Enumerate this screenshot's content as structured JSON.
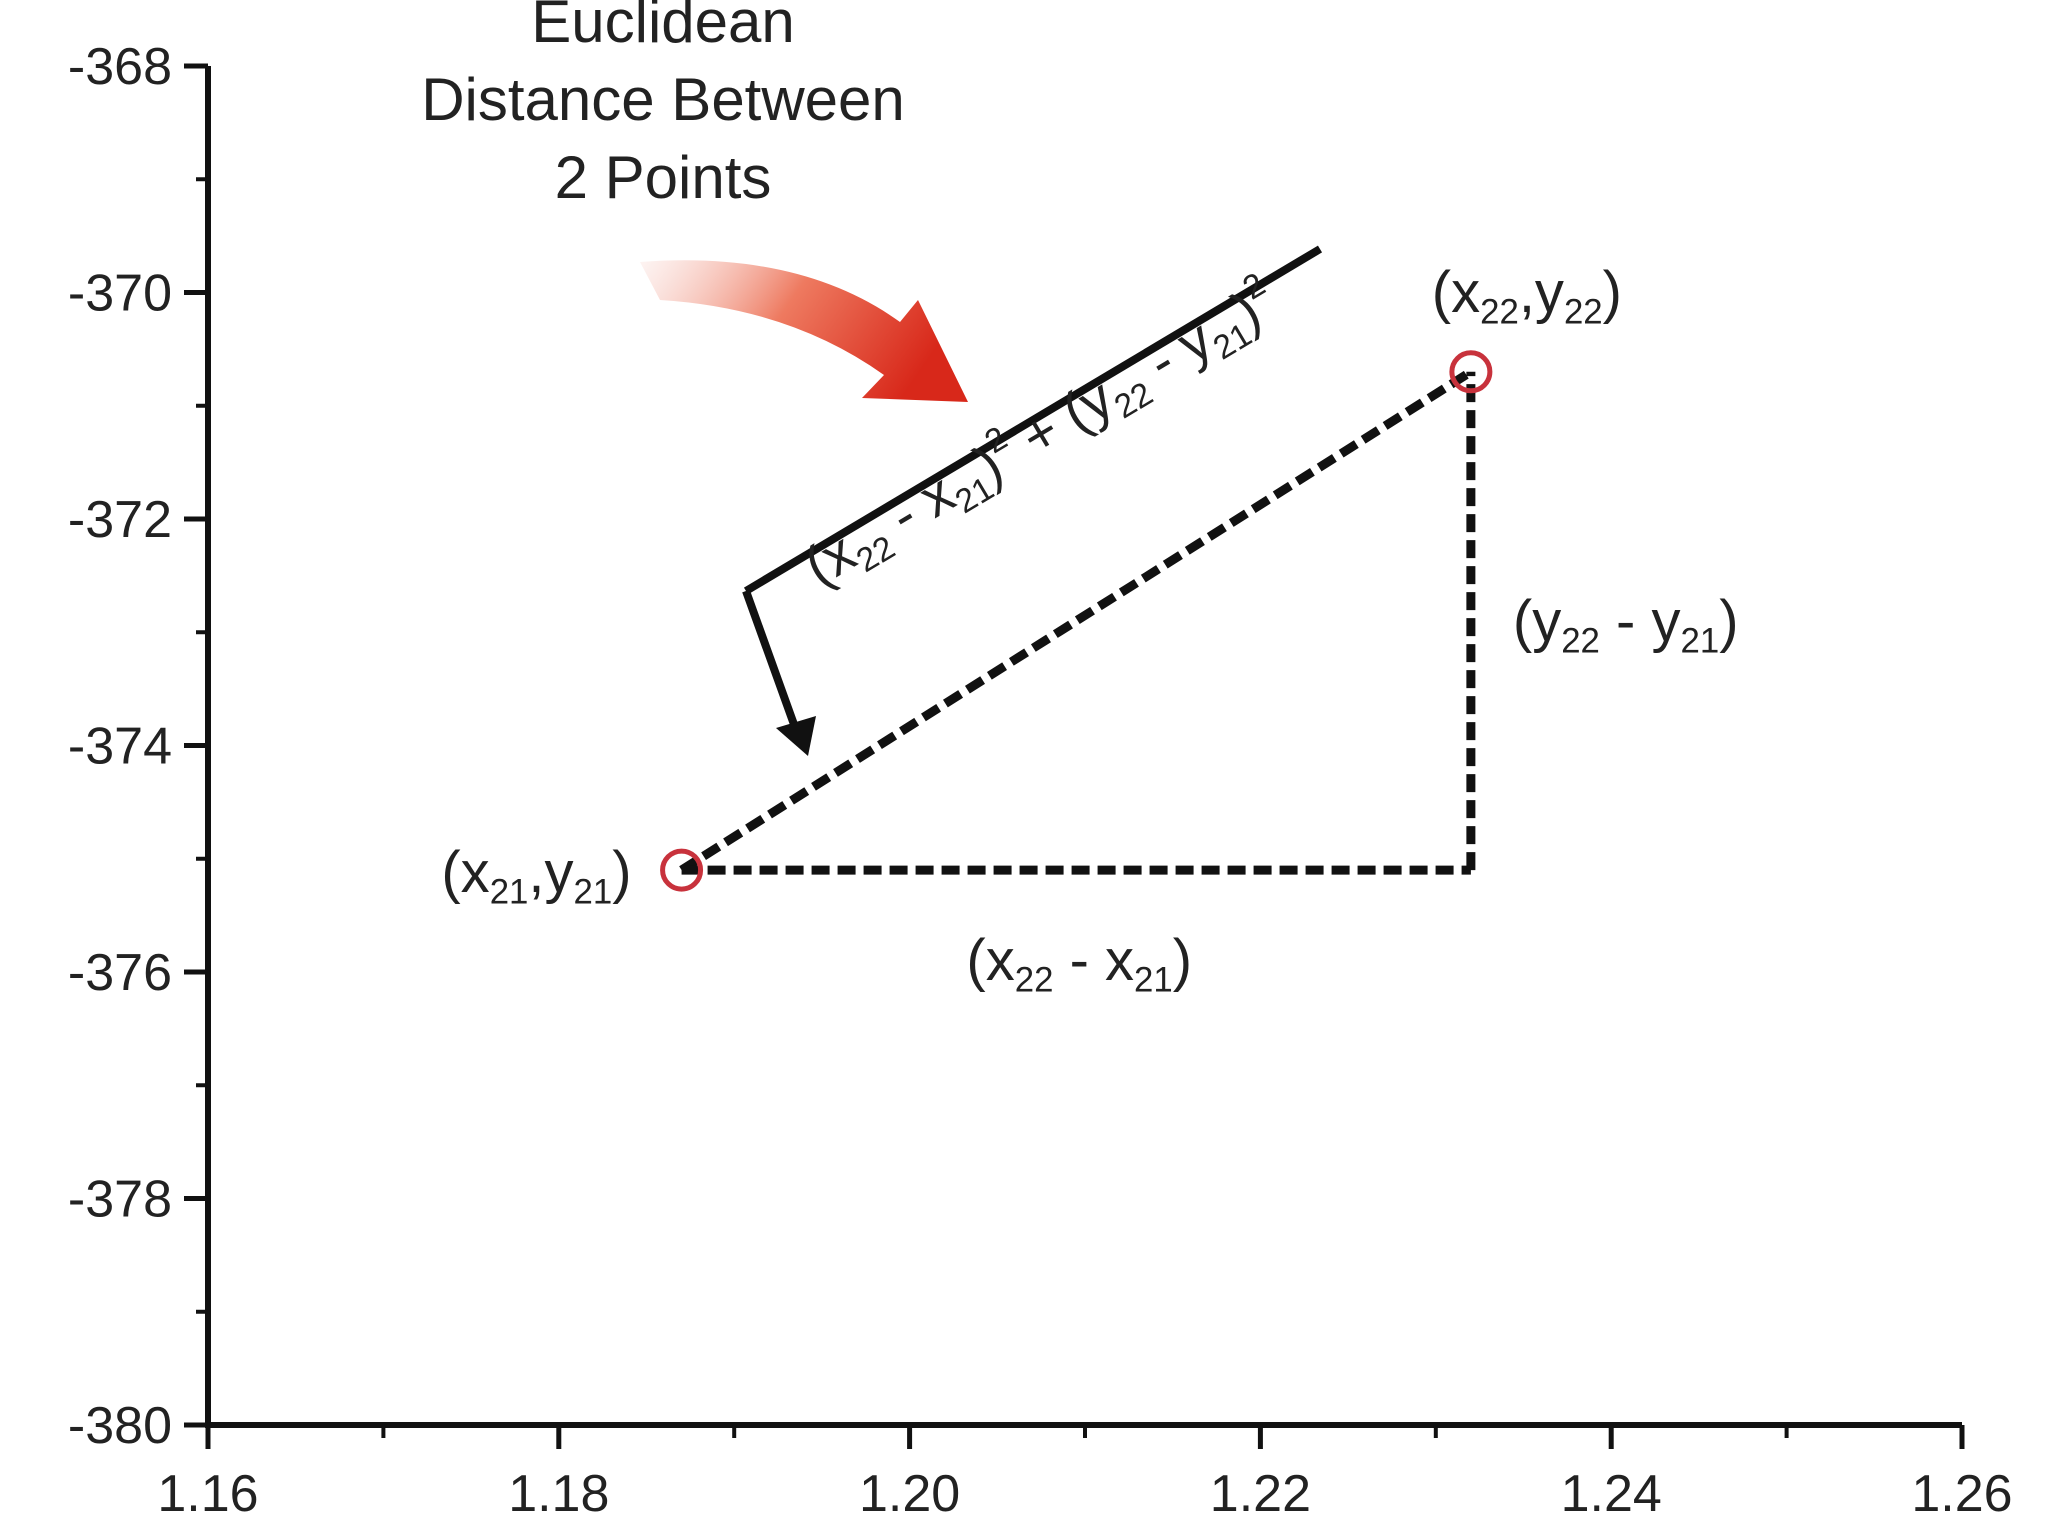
{
  "chart_data": {
    "type": "scatter",
    "title": [
      "Euclidean",
      "Distance Between",
      "2 Points"
    ],
    "x": [
      1.187,
      1.232
    ],
    "values": [
      -375.1,
      -370.7
    ],
    "color": "#c8323c",
    "point_labels": [
      [
        "(x",
        "21",
        ",y",
        "21",
        ")"
      ],
      [
        "(x",
        "22",
        ",y",
        "22",
        ")"
      ]
    ],
    "annotations": {
      "dx": [
        "(x",
        "22",
        " - x",
        "21",
        ")"
      ],
      "dy": [
        "(y",
        "22",
        " - y",
        "21",
        ")"
      ],
      "formula": [
        "(x",
        "22",
        " - x",
        "21",
        ")",
        "2",
        " + (y",
        "22",
        " - y",
        "21",
        ")",
        "2"
      ]
    },
    "xlim": [
      1.16,
      1.26
    ],
    "xticks": [
      1.16,
      1.18,
      {
        "value": 1.2,
        "label": "1.20"
      },
      1.22,
      1.24,
      1.26
    ],
    "xminorticks": [
      1.17,
      1.19,
      1.21,
      1.23,
      1.25
    ],
    "ylim": [
      -380,
      -368
    ],
    "yticks": [
      -368,
      -370,
      -372,
      -374,
      -376,
      -378,
      -380
    ],
    "yminorticks": [
      -369,
      -371,
      -373,
      -375,
      -377,
      -379
    ]
  }
}
